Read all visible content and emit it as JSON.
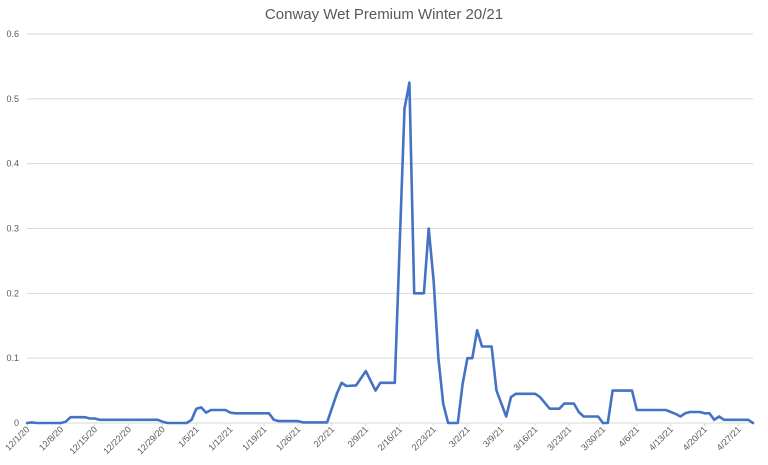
{
  "chart_data": {
    "type": "line",
    "title": "Conway Wet Premium Winter 20/21",
    "xlabel": "",
    "ylabel": "",
    "ylim": [
      0,
      0.6
    ],
    "y_ticks": [
      "0",
      "0.1",
      "0.2",
      "0.3",
      "0.4",
      "0.5",
      "0.6"
    ],
    "x_range": [
      "2020-12-01",
      "2021-04-30"
    ],
    "x_ticks": [
      "12/1/20",
      "12/8/20",
      "12/15/20",
      "12/22/20",
      "12/29/20",
      "1/5/21",
      "1/12/21",
      "1/19/21",
      "1/26/21",
      "2/2/21",
      "2/9/21",
      "2/16/21",
      "2/23/21",
      "3/2/21",
      "3/9/21",
      "3/16/21",
      "3/23/21",
      "3/30/21",
      "4/6/21",
      "4/13/21",
      "4/20/21",
      "4/27/21"
    ],
    "grid": true,
    "legend": "none",
    "series": [
      {
        "color": "#4472c4",
        "points": [
          [
            "2020-12-01",
            0.0
          ],
          [
            "2020-12-02",
            0.001
          ],
          [
            "2020-12-03",
            0.0
          ],
          [
            "2020-12-08",
            0.0
          ],
          [
            "2020-12-09",
            0.002
          ],
          [
            "2020-12-10",
            0.009
          ],
          [
            "2020-12-13",
            0.009
          ],
          [
            "2020-12-14",
            0.007
          ],
          [
            "2020-12-15",
            0.007
          ],
          [
            "2020-12-16",
            0.005
          ],
          [
            "2020-12-28",
            0.005
          ],
          [
            "2020-12-29",
            0.002
          ],
          [
            "2020-12-30",
            0.0
          ],
          [
            "2021-01-03",
            0.0
          ],
          [
            "2021-01-04",
            0.005
          ],
          [
            "2021-01-05",
            0.022
          ],
          [
            "2021-01-06",
            0.024
          ],
          [
            "2021-01-07",
            0.016
          ],
          [
            "2021-01-08",
            0.02
          ],
          [
            "2021-01-11",
            0.02
          ],
          [
            "2021-01-12",
            0.016
          ],
          [
            "2021-01-13",
            0.015
          ],
          [
            "2021-01-20",
            0.015
          ],
          [
            "2021-01-21",
            0.005
          ],
          [
            "2021-01-22",
            0.003
          ],
          [
            "2021-01-26",
            0.003
          ],
          [
            "2021-01-27",
            0.001
          ],
          [
            "2021-02-01",
            0.001
          ],
          [
            "2021-02-03",
            0.045
          ],
          [
            "2021-02-04",
            0.062
          ],
          [
            "2021-02-05",
            0.057
          ],
          [
            "2021-02-07",
            0.058
          ],
          [
            "2021-02-09",
            0.08
          ],
          [
            "2021-02-11",
            0.05
          ],
          [
            "2021-02-12",
            0.062
          ],
          [
            "2021-02-15",
            0.062
          ],
          [
            "2021-02-17",
            0.485
          ],
          [
            "2021-02-18",
            0.525
          ],
          [
            "2021-02-19",
            0.2
          ],
          [
            "2021-02-21",
            0.2
          ],
          [
            "2021-02-22",
            0.3
          ],
          [
            "2021-02-23",
            0.22
          ],
          [
            "2021-02-24",
            0.1
          ],
          [
            "2021-02-25",
            0.03
          ],
          [
            "2021-02-26",
            0.0
          ],
          [
            "2021-02-28",
            0.0
          ],
          [
            "2021-03-01",
            0.06
          ],
          [
            "2021-03-02",
            0.1
          ],
          [
            "2021-03-03",
            0.1
          ],
          [
            "2021-03-04",
            0.143
          ],
          [
            "2021-03-05",
            0.118
          ],
          [
            "2021-03-07",
            0.118
          ],
          [
            "2021-03-08",
            0.05
          ],
          [
            "2021-03-10",
            0.01
          ],
          [
            "2021-03-11",
            0.04
          ],
          [
            "2021-03-12",
            0.045
          ],
          [
            "2021-03-16",
            0.045
          ],
          [
            "2021-03-17",
            0.04
          ],
          [
            "2021-03-19",
            0.022
          ],
          [
            "2021-03-21",
            0.022
          ],
          [
            "2021-03-22",
            0.03
          ],
          [
            "2021-03-24",
            0.03
          ],
          [
            "2021-03-25",
            0.017
          ],
          [
            "2021-03-26",
            0.01
          ],
          [
            "2021-03-29",
            0.01
          ],
          [
            "2021-03-30",
            0.0
          ],
          [
            "2021-03-31",
            0.0
          ],
          [
            "2021-04-01",
            0.05
          ],
          [
            "2021-04-05",
            0.05
          ],
          [
            "2021-04-06",
            0.02
          ],
          [
            "2021-04-12",
            0.02
          ],
          [
            "2021-04-14",
            0.014
          ],
          [
            "2021-04-15",
            0.01
          ],
          [
            "2021-04-16",
            0.015
          ],
          [
            "2021-04-17",
            0.017
          ],
          [
            "2021-04-19",
            0.017
          ],
          [
            "2021-04-20",
            0.015
          ],
          [
            "2021-04-21",
            0.015
          ],
          [
            "2021-04-22",
            0.005
          ],
          [
            "2021-04-23",
            0.01
          ],
          [
            "2021-04-24",
            0.005
          ],
          [
            "2021-04-29",
            0.005
          ],
          [
            "2021-04-30",
            0.0
          ]
        ]
      }
    ]
  }
}
